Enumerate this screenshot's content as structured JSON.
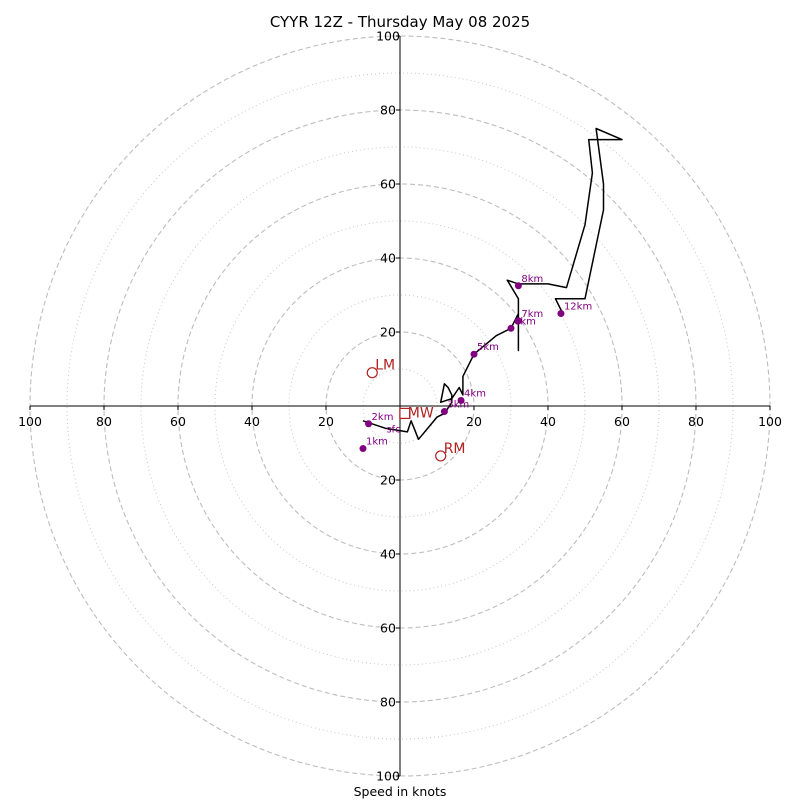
{
  "chart_data": {
    "type": "scatter",
    "title": "CYYR 12Z - Thursday May 08 2025",
    "xlabel": "Speed in knots",
    "ylabel": "",
    "xlim": [
      -100,
      100
    ],
    "ylim": [
      -100,
      100
    ],
    "grid": true,
    "rings": {
      "dashed": [
        20,
        40,
        60,
        80,
        100
      ],
      "dotted": [
        10,
        30,
        50,
        70,
        90
      ]
    },
    "tick_labels": {
      "x_left": [
        "100",
        "80",
        "60",
        "40",
        "20"
      ],
      "x_right": [
        "20",
        "40",
        "60",
        "80",
        "100"
      ],
      "y_top": [
        "20",
        "40",
        "60",
        "80",
        "100"
      ],
      "y_bottom": [
        "20",
        "40",
        "60",
        "80",
        "100"
      ]
    },
    "hodograph": {
      "color": "#000000",
      "points": [
        [
          -10,
          -4
        ],
        [
          -4,
          -6
        ],
        [
          2,
          -7
        ],
        [
          3,
          -4
        ],
        [
          5,
          -9
        ],
        [
          10,
          -3
        ],
        [
          12,
          -2
        ],
        [
          14,
          1
        ],
        [
          14,
          3
        ],
        [
          13,
          5
        ],
        [
          12,
          6
        ],
        [
          11,
          1
        ],
        [
          14,
          2
        ],
        [
          16,
          5
        ],
        [
          17,
          3
        ],
        [
          17,
          8
        ],
        [
          20,
          14
        ],
        [
          26,
          19
        ],
        [
          30,
          21
        ],
        [
          32,
          25
        ],
        [
          32,
          29
        ],
        [
          32,
          15
        ],
        [
          32,
          29
        ],
        [
          29,
          34
        ],
        [
          32,
          33
        ],
        [
          40,
          33
        ],
        [
          45,
          32
        ],
        [
          50,
          49
        ],
        [
          52,
          63
        ],
        [
          51,
          72
        ],
        [
          57,
          72
        ],
        [
          60,
          72
        ],
        [
          53,
          75
        ],
        [
          55,
          60
        ],
        [
          55,
          53
        ],
        [
          50,
          29
        ],
        [
          42,
          29
        ],
        [
          44,
          25
        ]
      ]
    },
    "height_markers": {
      "color": "#800080",
      "points": [
        {
          "label": "1km",
          "x": -10,
          "y": -11.5
        },
        {
          "label": "2km",
          "x": -8.5,
          "y": -4.8
        },
        {
          "label": "3km",
          "x": 12,
          "y": -1.5
        },
        {
          "label": "4km",
          "x": 16.5,
          "y": 1.5
        },
        {
          "label": "5km",
          "x": 20,
          "y": 14
        },
        {
          "label": "6km",
          "x": 30,
          "y": 21
        },
        {
          "label": "7km",
          "x": 32,
          "y": 23
        },
        {
          "label": "8km",
          "x": 32,
          "y": 32.5
        },
        {
          "label": "12km",
          "x": 43.5,
          "y": 25
        }
      ],
      "extra_label": {
        "label": "sfc",
        "x": -4.5,
        "y": -6.3
      }
    },
    "motion_markers": {
      "color": "#b22222",
      "points": [
        {
          "label": "LM",
          "x": -7.5,
          "y": 9
        },
        {
          "label": "RM",
          "x": 11,
          "y": -13.5
        },
        {
          "label": "MW",
          "x": 1.3,
          "y": -2
        }
      ]
    }
  }
}
